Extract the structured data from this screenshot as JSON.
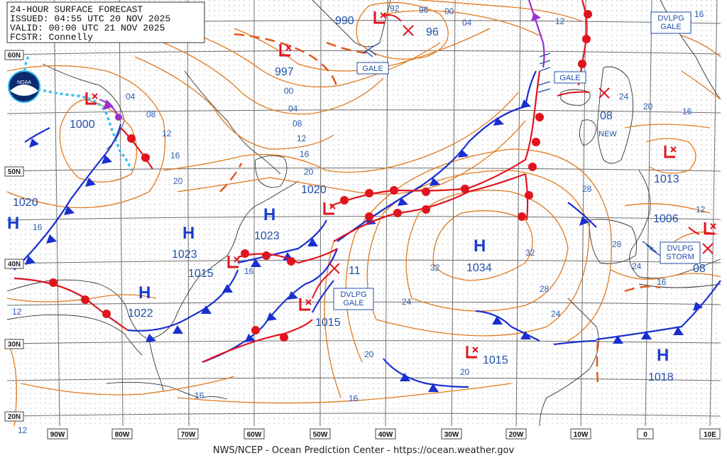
{
  "header": {
    "title": "24-HOUR SURFACE FORECAST",
    "issued": "ISSUED: 04:55 UTC 20 NOV 2025",
    "valid": "VALID:  00:00 UTC 21 NOV 2025",
    "forecaster": "FCSTR:  Connelly"
  },
  "footer": "NWS/NCEP - Ocean Prediction Center - https://ocean.weather.gov",
  "logo_text": "NOAA",
  "colors": {
    "isobar": "#e07a1e",
    "cold_front": "#1a2fd0",
    "warm_front": "#e0141e",
    "occluded": "#9b30d0",
    "trough": "#e0571e",
    "ice": "#3cc0f0",
    "text": "#1f4fa8"
  },
  "lat_labels": [
    "60N",
    "50N",
    "40N",
    "30N",
    "20N"
  ],
  "lon_labels": [
    "90W",
    "80W",
    "70W",
    "60W",
    "50W",
    "40W",
    "30W",
    "20W",
    "10W",
    "0",
    "10E"
  ],
  "highs": [
    {
      "pressure": "1023"
    },
    {
      "pressure": "1023"
    },
    {
      "pressure": "1022"
    },
    {
      "pressure": "1034"
    },
    {
      "pressure": "1018"
    },
    {
      "pressure": ""
    }
  ],
  "lows": [
    {
      "pressure": "1000"
    },
    {
      "pressure": "997"
    },
    {
      "pressure": "990"
    },
    {
      "pressure": "1020"
    },
    {
      "pressure": "1015"
    },
    {
      "pressure": "1015"
    },
    {
      "pressure": "1015"
    },
    {
      "pressure": "1013"
    },
    {
      "pressure": "1006"
    }
  ],
  "low_tracks": [
    {
      "pressure": "96"
    },
    {
      "pressure": "11"
    },
    {
      "pressure": "08"
    },
    {
      "pressure": "08"
    },
    {
      "pressure": "1020"
    }
  ],
  "warnings": [
    "GALE",
    "GALE",
    "DVLPG GALE",
    "DVLPG GALE",
    "DVLPG STORM"
  ],
  "new_label": "NEW",
  "isobar_labels": [
    "92",
    "96",
    "00",
    "04",
    "12",
    "16",
    "00",
    "04",
    "08",
    "12",
    "16",
    "20",
    "04",
    "08",
    "12",
    "16",
    "20",
    "16",
    "32",
    "32",
    "28",
    "28",
    "24",
    "24",
    "20",
    "16",
    "16",
    "12",
    "12",
    "16",
    "20",
    "24",
    "28",
    "24",
    "16",
    "20",
    "16",
    "12"
  ]
}
